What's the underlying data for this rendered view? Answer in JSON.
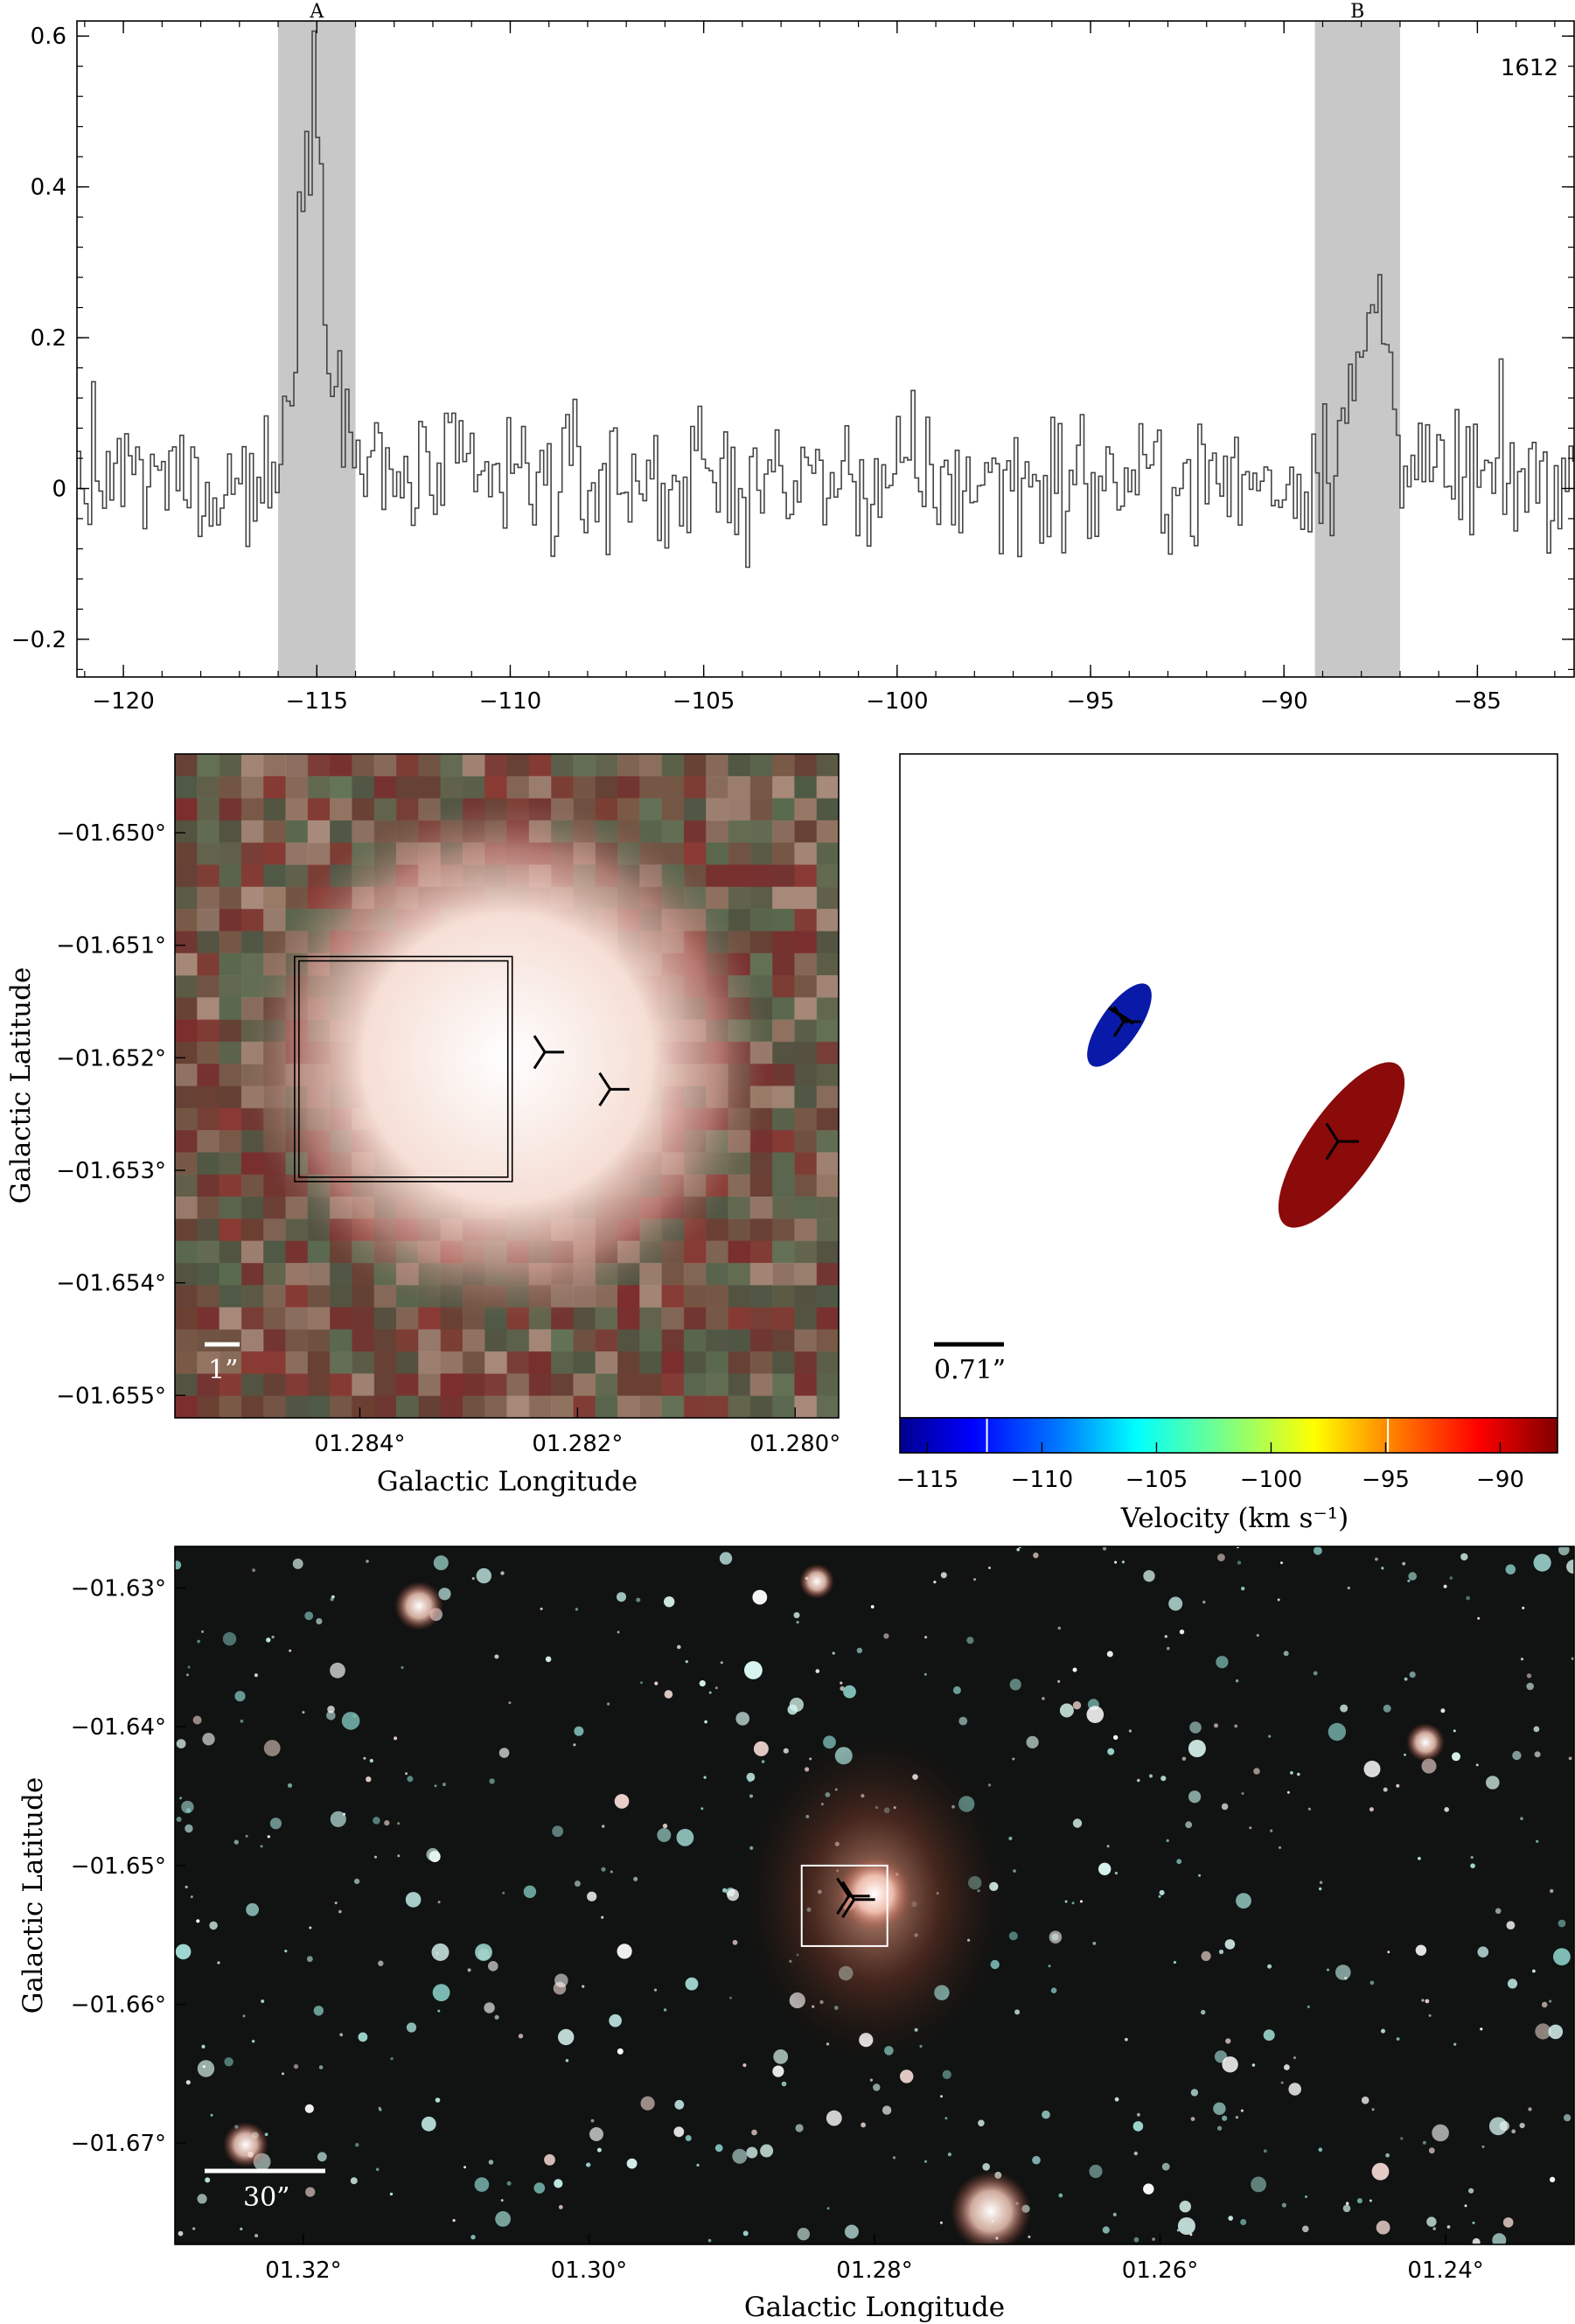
{
  "chart_data": [
    {
      "type": "line",
      "panel": "spectrum",
      "annotation": "1612",
      "xlim": [
        -121.2,
        -82.5
      ],
      "ylim": [
        -0.25,
        0.62
      ],
      "xticks": [
        -120,
        -115,
        -110,
        -105,
        -100,
        -95,
        -90,
        -85
      ],
      "xtick_labels": [
        "−120",
        "−115",
        "−110",
        "−105",
        "−100",
        "−95",
        "−90",
        "−85"
      ],
      "yticks": [
        -0.2,
        0,
        0.2,
        0.4,
        0.6
      ],
      "ytick_labels": [
        "−0.2",
        "0",
        "0.2",
        "0.4",
        "0.6"
      ],
      "bands": [
        {
          "label": "A",
          "x0": -116.0,
          "x1": -114.0
        },
        {
          "label": "B",
          "x0": -89.2,
          "x1": -87.0
        }
      ],
      "grid": false
    },
    {
      "type": "image",
      "panel": "zoom-rgb",
      "xlabel": "Galactic Longitude",
      "ylabel": "Galactic Latitude",
      "xlim": [
        1.2857,
        1.2796
      ],
      "ylim": [
        -1.6552,
        -1.6493
      ],
      "xticks": [
        1.284,
        1.282,
        1.28
      ],
      "xtick_labels": [
        "01.284°",
        "01.282°",
        "01.280°"
      ],
      "yticks": [
        -1.65,
        -1.651,
        -1.652,
        -1.653,
        -1.654,
        -1.655
      ],
      "ytick_labels": [
        "−01.650°",
        "−01.651°",
        "−01.652°",
        "−01.653°",
        "−01.654°",
        "−01.655°"
      ],
      "scalebar_label": "1”",
      "box": {
        "l0": 1.2846,
        "l1": 1.2826,
        "b0": -1.6511,
        "b1": -1.6531
      },
      "markers": [
        {
          "l": 1.2823,
          "b": -1.65195
        },
        {
          "l": 1.2817,
          "b": -1.65228
        }
      ]
    },
    {
      "type": "scatter",
      "panel": "maser-spots",
      "xlabel": "Velocity (km s⁻¹)",
      "scalebar_label": "0.71”",
      "colorbar": {
        "vmin": -116.2,
        "vmax": -87.5,
        "ticks": [
          -115,
          -110,
          -105,
          -100,
          -95,
          -90
        ],
        "tick_labels": [
          "−115",
          "−110",
          "−105",
          "−100",
          "−95",
          "−90"
        ],
        "marks": [
          -112.4,
          -94.9
        ]
      },
      "spots": [
        {
          "feature": "A",
          "velocity": -115.0
        },
        {
          "feature": "B",
          "velocity": -88.0
        }
      ]
    },
    {
      "type": "image",
      "panel": "wide-field-rgb",
      "xlabel": "Galactic Longitude",
      "ylabel": "Galactic Latitude",
      "xlim": [
        1.329,
        1.231
      ],
      "ylim": [
        -1.6773,
        -1.627
      ],
      "xticks": [
        1.32,
        1.3,
        1.28,
        1.26,
        1.24
      ],
      "xtick_labels": [
        "01.32°",
        "01.30°",
        "01.28°",
        "01.26°",
        "01.24°"
      ],
      "yticks": [
        -1.63,
        -1.64,
        -1.65,
        -1.66,
        -1.67
      ],
      "ytick_labels": [
        "−01.63°",
        "−01.64°",
        "−01.65°",
        "−01.66°",
        "−01.67°"
      ],
      "scalebar_label": "30”",
      "box": {
        "l0": 1.2851,
        "l1": 1.2791,
        "b0": -1.65,
        "b1": -1.6558
      },
      "marker": {
        "l": 1.2818,
        "b": -1.6522
      }
    }
  ],
  "colors": {
    "band": "#c8c8c8",
    "spectrum_line": "#444444",
    "spot_blue": "#0a1aa8",
    "spot_red": "#8b0a0a"
  }
}
